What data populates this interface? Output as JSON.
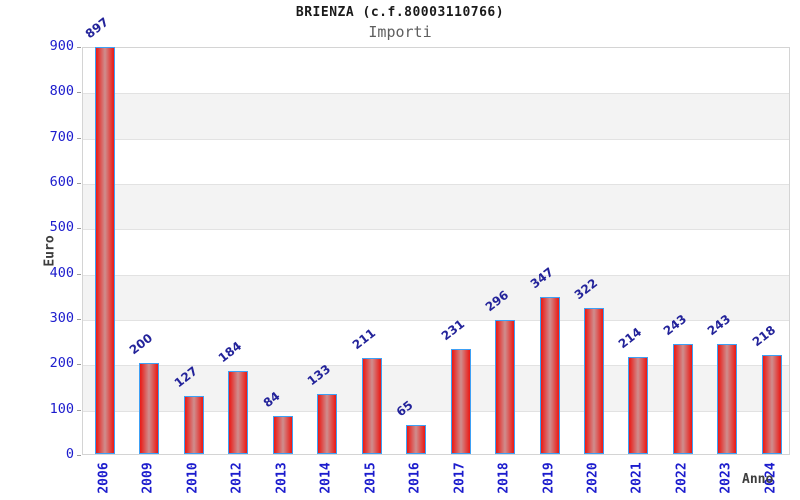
{
  "page": {
    "background": "#ffffff"
  },
  "chart_data": {
    "type": "bar",
    "title": "BRIENZA (c.f.80003110766)",
    "subtitle": "Importi",
    "ylabel": "Euro",
    "xlabel": "Anno",
    "categories": [
      "2006",
      "2009",
      "2010",
      "2012",
      "2013",
      "2014",
      "2015",
      "2016",
      "2017",
      "2018",
      "2019",
      "2020",
      "2021",
      "2022",
      "2023",
      "2024"
    ],
    "values": [
      897,
      200,
      127,
      184,
      84,
      133,
      211,
      65,
      231,
      296,
      347,
      322,
      214,
      243,
      243,
      218
    ],
    "ylim": [
      0,
      900
    ],
    "yticks": [
      0,
      100,
      200,
      300,
      400,
      500,
      600,
      700,
      800,
      900
    ],
    "grid": "horizontal gridlines every 100 with alternating gray bands",
    "legend": "none",
    "colors": {
      "bar_edge_blue": "#3da0f5",
      "bar_red": "#e9201c",
      "bar_center_highlight": "#cf8e8e",
      "tick_label_blue": "#1c1ccd",
      "value_label_navy": "#23239a",
      "axis_title_gray": "#3d3d3d",
      "subtitle_gray": "#5f5f5f",
      "title_black": "#1a1a1a",
      "band_gray": "#f3f3f3",
      "gridline_gray": "#e2e2e2",
      "plot_border_gray": "#d4d4d4"
    }
  }
}
